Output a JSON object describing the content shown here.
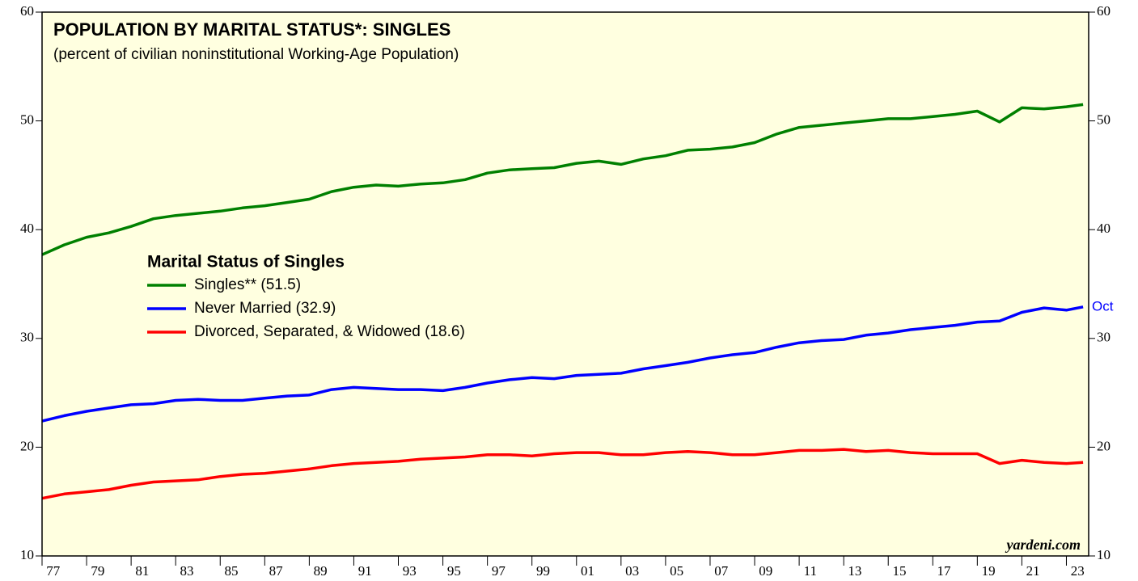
{
  "chart_data": {
    "type": "line",
    "title": "POPULATION BY MARITAL STATUS*: SINGLES",
    "subtitle": "(percent of civilian noninstitutional Working-Age Population)",
    "legend_title": "Marital Status of Singles",
    "annotation": "Oct",
    "source": "yardeni.com",
    "x": [
      1977,
      1978,
      1979,
      1980,
      1981,
      1982,
      1983,
      1984,
      1985,
      1986,
      1987,
      1988,
      1989,
      1990,
      1991,
      1992,
      1993,
      1994,
      1995,
      1996,
      1997,
      1998,
      1999,
      2000,
      2001,
      2002,
      2003,
      2004,
      2005,
      2006,
      2007,
      2008,
      2009,
      2010,
      2011,
      2012,
      2013,
      2014,
      2015,
      2016,
      2017,
      2018,
      2019,
      2020,
      2021,
      2022,
      2023,
      2023.75
    ],
    "series": [
      {
        "name": "Singles** (51.5)",
        "color": "#008000",
        "values": [
          37.7,
          38.6,
          39.3,
          39.7,
          40.3,
          41.0,
          41.3,
          41.5,
          41.7,
          42.0,
          42.2,
          42.5,
          42.8,
          43.5,
          43.9,
          44.1,
          44.0,
          44.2,
          44.3,
          44.6,
          45.2,
          45.5,
          45.6,
          45.7,
          46.1,
          46.3,
          46.0,
          46.5,
          46.8,
          47.3,
          47.4,
          47.6,
          48.0,
          48.8,
          49.4,
          49.6,
          49.8,
          50.0,
          50.2,
          50.2,
          50.4,
          50.6,
          50.9,
          49.9,
          51.2,
          51.1,
          51.3,
          51.5
        ]
      },
      {
        "name": "Never Married (32.9)",
        "color": "#0000ff",
        "values": [
          22.4,
          22.9,
          23.3,
          23.6,
          23.9,
          24.0,
          24.3,
          24.4,
          24.3,
          24.3,
          24.5,
          24.7,
          24.8,
          25.3,
          25.5,
          25.4,
          25.3,
          25.3,
          25.2,
          25.5,
          25.9,
          26.2,
          26.4,
          26.3,
          26.6,
          26.7,
          26.8,
          27.2,
          27.5,
          27.8,
          28.2,
          28.5,
          28.7,
          29.2,
          29.6,
          29.8,
          29.9,
          30.3,
          30.5,
          30.8,
          31.0,
          31.2,
          31.5,
          31.6,
          32.4,
          32.8,
          32.6,
          32.9
        ]
      },
      {
        "name": "Divorced, Separated, & Widowed (18.6)",
        "color": "#ff0000",
        "values": [
          15.3,
          15.7,
          15.9,
          16.1,
          16.5,
          16.8,
          16.9,
          17.0,
          17.3,
          17.5,
          17.6,
          17.8,
          18.0,
          18.3,
          18.5,
          18.6,
          18.7,
          18.9,
          19.0,
          19.1,
          19.3,
          19.3,
          19.2,
          19.4,
          19.5,
          19.5,
          19.3,
          19.3,
          19.5,
          19.6,
          19.5,
          19.3,
          19.3,
          19.5,
          19.7,
          19.7,
          19.8,
          19.6,
          19.7,
          19.5,
          19.4,
          19.4,
          19.4,
          18.5,
          18.8,
          18.6,
          18.5,
          18.6
        ]
      }
    ],
    "xlim": [
      1977,
      2024
    ],
    "xticks": [
      {
        "value": 1977,
        "label": "77"
      },
      {
        "value": 1979,
        "label": "79"
      },
      {
        "value": 1981,
        "label": "81"
      },
      {
        "value": 1983,
        "label": "83"
      },
      {
        "value": 1985,
        "label": "85"
      },
      {
        "value": 1987,
        "label": "87"
      },
      {
        "value": 1989,
        "label": "89"
      },
      {
        "value": 1991,
        "label": "91"
      },
      {
        "value": 1993,
        "label": "93"
      },
      {
        "value": 1995,
        "label": "95"
      },
      {
        "value": 1997,
        "label": "97"
      },
      {
        "value": 1999,
        "label": "99"
      },
      {
        "value": 2001,
        "label": "01"
      },
      {
        "value": 2003,
        "label": "03"
      },
      {
        "value": 2005,
        "label": "05"
      },
      {
        "value": 2007,
        "label": "07"
      },
      {
        "value": 2009,
        "label": "09"
      },
      {
        "value": 2011,
        "label": "11"
      },
      {
        "value": 2013,
        "label": "13"
      },
      {
        "value": 2015,
        "label": "15"
      },
      {
        "value": 2017,
        "label": "17"
      },
      {
        "value": 2019,
        "label": "19"
      },
      {
        "value": 2021,
        "label": "21"
      },
      {
        "value": 2023,
        "label": "23"
      }
    ],
    "ylim": [
      10,
      60
    ],
    "yticks": [
      10,
      20,
      30,
      40,
      50,
      60
    ]
  }
}
